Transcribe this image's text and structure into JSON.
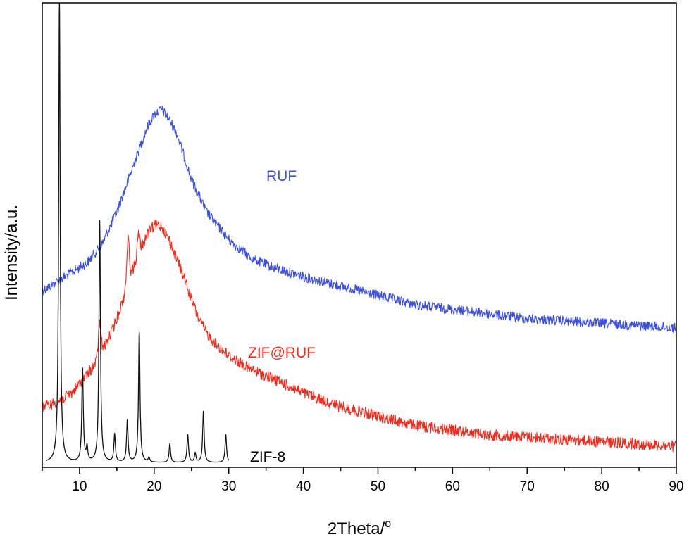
{
  "chart_data": {
    "type": "line",
    "xlabel": "2Theta/",
    "xlabel_superscript": "o",
    "ylabel": "Intensity/a.u.",
    "xlim": [
      5,
      90
    ],
    "x_ticks": [
      10,
      20,
      30,
      40,
      50,
      60,
      70,
      80,
      90
    ],
    "x_minor_step": 5,
    "y_tick_labels": false,
    "grid": false,
    "series": [
      {
        "name": "RUF",
        "color": "#3b4fe0",
        "noise": 7,
        "x": [
          5,
          7,
          9,
          11,
          13,
          15,
          17,
          19,
          20,
          21,
          22,
          23,
          24,
          25,
          27,
          30,
          33,
          36,
          40,
          45,
          50,
          55,
          60,
          65,
          70,
          75,
          80,
          85,
          90
        ],
        "y": [
          0.38,
          0.4,
          0.42,
          0.44,
          0.48,
          0.55,
          0.64,
          0.73,
          0.76,
          0.77,
          0.75,
          0.72,
          0.67,
          0.62,
          0.55,
          0.49,
          0.45,
          0.43,
          0.41,
          0.39,
          0.37,
          0.35,
          0.34,
          0.33,
          0.32,
          0.315,
          0.31,
          0.305,
          0.3
        ]
      },
      {
        "name": "ZIF@RUF",
        "color": "#ee2b1d",
        "noise": 8,
        "x": [
          5,
          7,
          9,
          10,
          11,
          12,
          13,
          14,
          15,
          16,
          17,
          18,
          19,
          20,
          21,
          22,
          23,
          24,
          25,
          26,
          27,
          28,
          30,
          33,
          36,
          40,
          45,
          50,
          55,
          60,
          65,
          70,
          75,
          80,
          85,
          90
        ],
        "y": [
          0.13,
          0.14,
          0.16,
          0.18,
          0.2,
          0.22,
          0.25,
          0.28,
          0.32,
          0.37,
          0.42,
          0.46,
          0.5,
          0.52,
          0.52,
          0.49,
          0.45,
          0.41,
          0.36,
          0.32,
          0.29,
          0.27,
          0.24,
          0.21,
          0.19,
          0.16,
          0.13,
          0.11,
          0.09,
          0.08,
          0.07,
          0.065,
          0.06,
          0.055,
          0.05,
          0.045
        ],
        "spikes": [
          {
            "x": 12.7,
            "y": 0.31
          },
          {
            "x": 16.5,
            "y": 0.49
          },
          {
            "x": 17.9,
            "y": 0.5
          }
        ]
      },
      {
        "name": "ZIF-8",
        "color": "#111111",
        "noise": 0,
        "baseline": 0.01,
        "x_range": [
          5.5,
          30
        ],
        "peaks": [
          {
            "x": 7.3,
            "y": 1.0
          },
          {
            "x": 10.4,
            "y": 0.21
          },
          {
            "x": 11.0,
            "y": 0.04
          },
          {
            "x": 12.7,
            "y": 0.53
          },
          {
            "x": 14.7,
            "y": 0.07
          },
          {
            "x": 16.4,
            "y": 0.1
          },
          {
            "x": 18.0,
            "y": 0.29
          },
          {
            "x": 19.3,
            "y": 0.02
          },
          {
            "x": 22.1,
            "y": 0.05
          },
          {
            "x": 23.6,
            "y": 0.01
          },
          {
            "x": 24.5,
            "y": 0.07
          },
          {
            "x": 25.5,
            "y": 0.03
          },
          {
            "x": 26.6,
            "y": 0.12
          },
          {
            "x": 28.7,
            "y": 0.01
          },
          {
            "x": 29.6,
            "y": 0.07
          }
        ]
      }
    ]
  }
}
